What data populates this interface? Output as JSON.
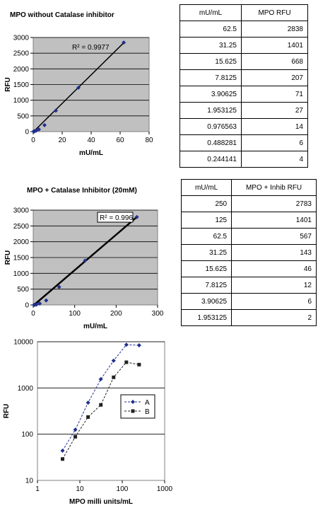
{
  "charts": {
    "c1": {
      "title": "MPO without Catalase inhibitor",
      "xlabel": "mU/mL",
      "ylabel": "RFU",
      "r2": "R² = 0.9977"
    },
    "c2": {
      "title": "MPO + Catalase Inhibitor (20mM)",
      "xlabel": "mU/mL",
      "ylabel": "RFU",
      "r2": "R² = 0.996"
    },
    "c3": {
      "title": "",
      "xlabel": "MPO milli units/mL",
      "ylabel": "RFU"
    }
  },
  "tables": {
    "t1": {
      "headers": [
        "mU/mL",
        "MPO RFU"
      ],
      "rows": [
        [
          "62.5",
          "2838"
        ],
        [
          "31.25",
          "1401"
        ],
        [
          "15.625",
          "668"
        ],
        [
          "7.8125",
          "207"
        ],
        [
          "3.90625",
          "71"
        ],
        [
          "1.953125",
          "27"
        ],
        [
          "0.976563",
          "14"
        ],
        [
          "0.488281",
          "6"
        ],
        [
          "0.244141",
          "4"
        ]
      ]
    },
    "t2": {
      "headers": [
        "mU/mL",
        "MPO + Inhib RFU"
      ],
      "rows": [
        [
          "250",
          "2783"
        ],
        [
          "125",
          "1401"
        ],
        [
          "62.5",
          "567"
        ],
        [
          "31.25",
          "143"
        ],
        [
          "15.625",
          "46"
        ],
        [
          "7.8125",
          "12"
        ],
        [
          "3.90625",
          "6"
        ],
        [
          "1.953125",
          "2"
        ]
      ]
    }
  },
  "chart_data": [
    {
      "type": "scatter",
      "title": "MPO without Catalase inhibitor",
      "xlabel": "mU/mL",
      "ylabel": "RFU",
      "xlim": [
        0,
        80
      ],
      "ylim": [
        0,
        3000
      ],
      "xticks": [
        0,
        20,
        40,
        60,
        80
      ],
      "yticks": [
        0,
        500,
        1000,
        1500,
        2000,
        2500,
        3000
      ],
      "grid": true,
      "trendline": "linear",
      "annotation": "R² = 0.9977",
      "series": [
        {
          "x": [
            62.5,
            31.25,
            15.625,
            7.8125,
            3.90625,
            1.953125,
            0.976563,
            0.488281,
            0.244141
          ],
          "y": [
            2838,
            1401,
            668,
            207,
            71,
            27,
            14,
            6,
            4
          ]
        }
      ]
    },
    {
      "type": "scatter",
      "title": "MPO + Catalase Inhibitor (20mM)",
      "xlabel": "mU/mL",
      "ylabel": "RFU",
      "xlim": [
        0,
        300
      ],
      "ylim": [
        0,
        3000
      ],
      "xticks": [
        0,
        100,
        200,
        300
      ],
      "yticks": [
        0,
        500,
        1000,
        1500,
        2000,
        2500,
        3000
      ],
      "grid": true,
      "trendline": "linear",
      "annotation": "R² = 0.996",
      "series": [
        {
          "x": [
            250,
            125,
            62.5,
            31.25,
            15.625,
            7.8125,
            3.90625,
            1.953125
          ],
          "y": [
            2783,
            1401,
            567,
            143,
            46,
            12,
            6,
            2
          ]
        }
      ]
    },
    {
      "type": "line",
      "title": "",
      "xlabel": "MPO milli units/mL",
      "ylabel": "RFU",
      "xscale": "log",
      "yscale": "log",
      "xlim": [
        1,
        1000
      ],
      "ylim": [
        10,
        10000
      ],
      "xticks": [
        1,
        10,
        100,
        1000
      ],
      "yticks": [
        10,
        100,
        1000,
        10000
      ],
      "grid": true,
      "legend": "right",
      "series": [
        {
          "name": "A",
          "color": "#1f2f8c",
          "marker": "diamond",
          "x": [
            3.90625,
            7.8125,
            15.625,
            31.25,
            62.5,
            125,
            250
          ],
          "y": [
            44,
            125,
            480,
            1550,
            3900,
            8600,
            8400
          ]
        },
        {
          "name": "B",
          "color": "#222222",
          "marker": "square",
          "x": [
            3.90625,
            7.8125,
            15.625,
            31.25,
            62.5,
            125,
            250
          ],
          "y": [
            29,
            88,
            235,
            430,
            1700,
            3600,
            3200
          ]
        }
      ]
    }
  ]
}
